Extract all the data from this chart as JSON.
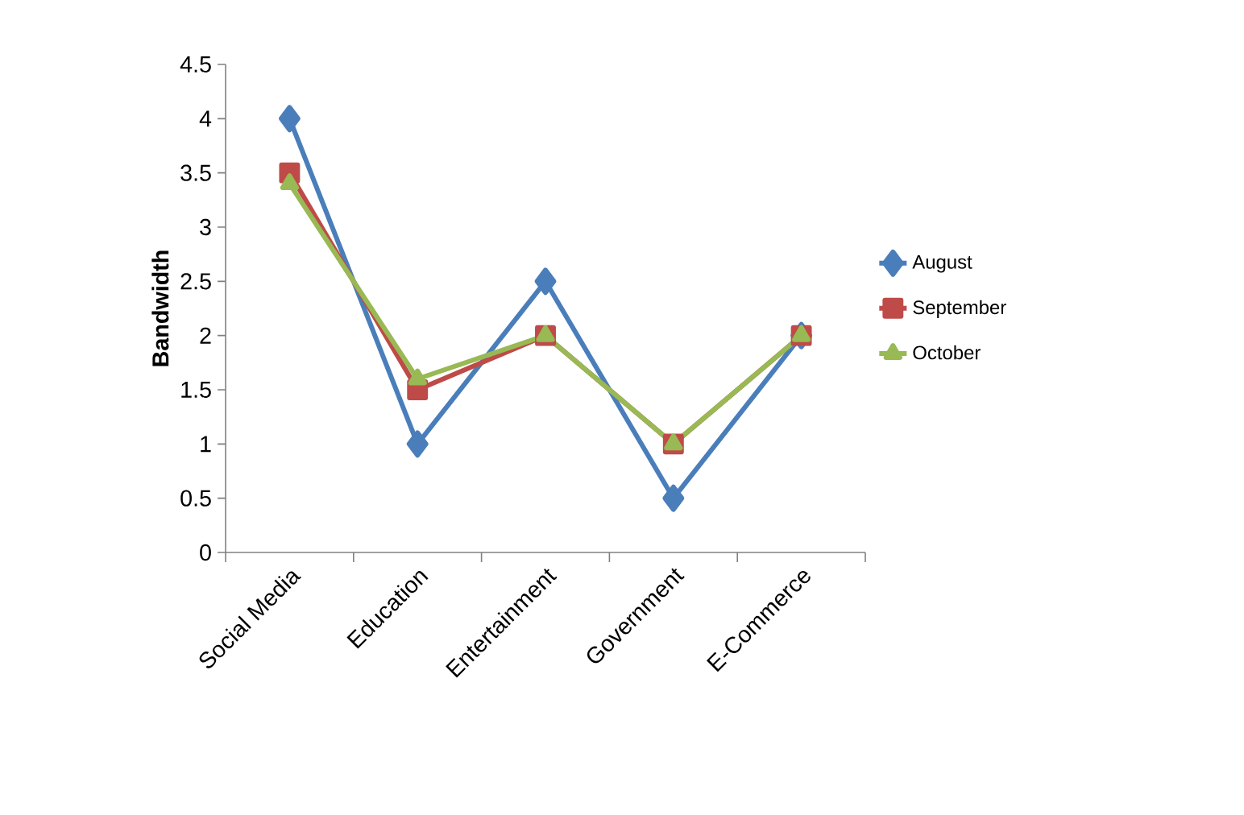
{
  "chart_data": {
    "type": "line",
    "ylabel": "Bandwidth",
    "categories": [
      "Social Media",
      "Education",
      "Entertainment",
      "Government",
      "E-Commerce"
    ],
    "series": [
      {
        "name": "August",
        "color": "#4a7ebb",
        "marker": "diamond",
        "values": [
          4,
          1,
          2.5,
          0.5,
          2
        ]
      },
      {
        "name": "September",
        "color": "#be4b48",
        "marker": "square",
        "values": [
          3.5,
          1.5,
          2,
          1,
          2
        ]
      },
      {
        "name": "October",
        "color": "#98b954",
        "marker": "triangle",
        "values": [
          3.4,
          1.6,
          2,
          1,
          2
        ]
      }
    ],
    "ylim": [
      0,
      4.5
    ],
    "yticks": [
      0,
      0.5,
      1,
      1.5,
      2,
      2.5,
      3,
      3.5,
      4,
      4.5
    ],
    "grid": false,
    "legend": "right",
    "line_style": "solid"
  }
}
